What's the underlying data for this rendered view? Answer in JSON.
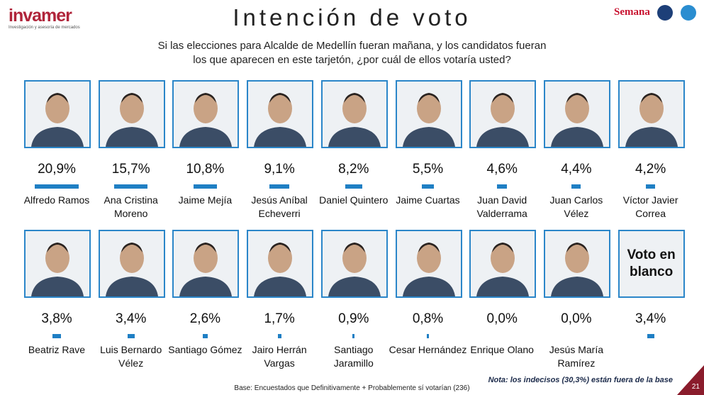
{
  "header": {
    "logo": "invamer",
    "tagline": "Investigación y asesoría de mercados",
    "brand": "Semana"
  },
  "chart_data": {
    "type": "bar",
    "title": "Intención de voto",
    "subtitle": [
      "Si las elecciones para Alcalde de Medellín fueran mañana, y los candidatos fueran",
      "los que aparecen en este tarjetón, ¿por cuál de ellos votaría usted?"
    ],
    "categories": [
      "Alfredo Ramos",
      "Ana Cristina Moreno",
      "Jaime Mejía",
      "Jesús Aníbal Echeverri",
      "Daniel Quintero",
      "Jaime Cuartas",
      "Juan David Valderrama",
      "Juan Carlos Vélez",
      "Víctor Javier Correa",
      "Beatriz Rave",
      "Luis Bernardo Vélez",
      "Santiago Gómez",
      "Jairo Herrán Vargas",
      "Santiago Jaramillo",
      "Cesar Hernández",
      "Enrique Olano",
      "Jesús María Ramírez",
      "Voto en blanco"
    ],
    "values": [
      20.9,
      15.7,
      10.8,
      9.1,
      8.2,
      5.5,
      4.6,
      4.4,
      4.2,
      3.8,
      3.4,
      2.6,
      1.7,
      0.9,
      0.8,
      0.0,
      0.0,
      3.4
    ],
    "value_labels": [
      "20,9%",
      "15,7%",
      "10,8%",
      "9,1%",
      "8,2%",
      "5,5%",
      "4,6%",
      "4,4%",
      "4,2%",
      "3,8%",
      "3,4%",
      "2,6%",
      "1,7%",
      "0,9%",
      "0,8%",
      "0,0%",
      "0,0%",
      "3,4%"
    ],
    "color": "#1f7fc4"
  },
  "footer": {
    "note": "Nota: los indecisos (30,3%) están fuera de la base",
    "base": "Base: Encuestados que Definitivamente + Probablemente sí votarían (236)",
    "page": "21"
  }
}
